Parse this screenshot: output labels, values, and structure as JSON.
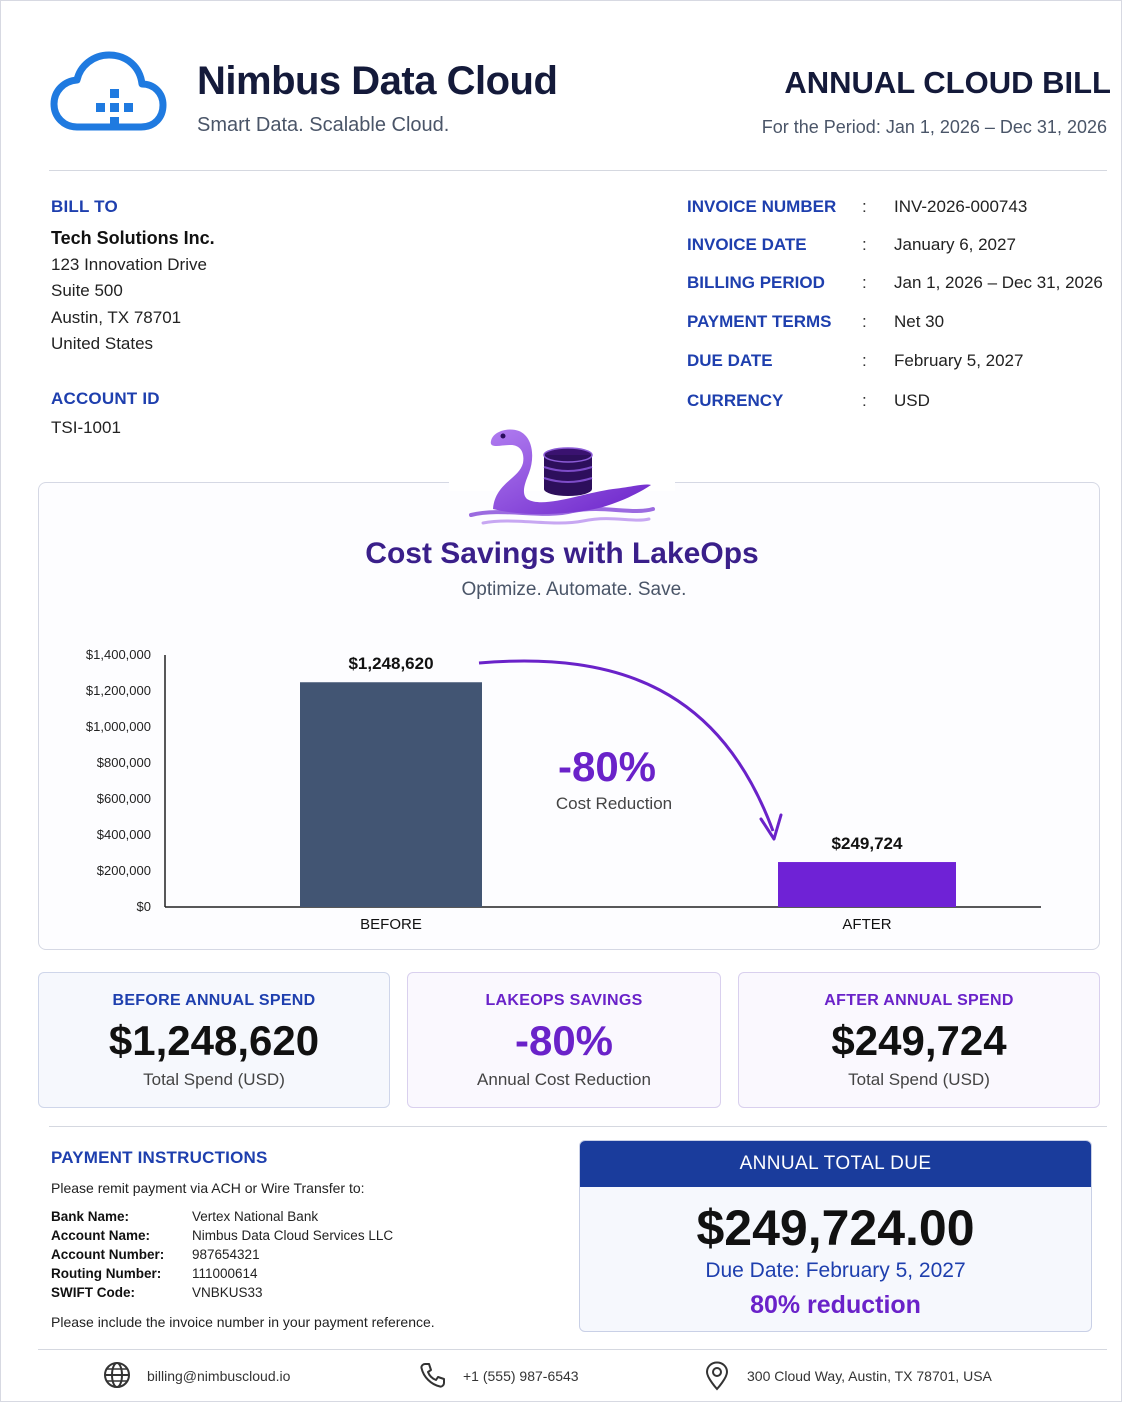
{
  "brand": {
    "name": "Nimbus Data Cloud",
    "tagline": "Smart Data. Scalable Cloud."
  },
  "document": {
    "title": "ANNUAL CLOUD BILL",
    "period": "For the Period: Jan 1, 2026 – Dec 31, 2026"
  },
  "bill_to": {
    "label": "BILL TO",
    "company": "Tech Solutions Inc.",
    "address": [
      "123 Innovation Drive",
      "Suite 500",
      "Austin, TX 78701",
      "United States"
    ],
    "account_label": "ACCOUNT ID",
    "account_id": "TSI-1001"
  },
  "invoice": [
    {
      "label": "INVOICE NUMBER",
      "value": "INV-2026-000743"
    },
    {
      "label": "INVOICE DATE",
      "value": "January 6, 2027"
    },
    {
      "label": "BILLING PERIOD",
      "value": "Jan 1, 2026 – Dec 31, 2026"
    },
    {
      "label": "PAYMENT TERMS",
      "value": "Net 30"
    },
    {
      "label": "DUE DATE",
      "value": "February 5, 2027"
    },
    {
      "label": "CURRENCY",
      "value": "USD"
    }
  ],
  "chart_card": {
    "title": "Cost Savings with LakeOps",
    "subtitle": "Optimize. Automate. Save."
  },
  "chart_data": {
    "type": "bar",
    "categories": [
      "BEFORE",
      "AFTER"
    ],
    "values": [
      1248620,
      249724
    ],
    "value_labels": [
      "$1,248,620",
      "$249,724"
    ],
    "y_ticks": [
      "$0",
      "$200,000",
      "$400,000",
      "$600,000",
      "$800,000",
      "$1,000,000",
      "$1,200,000",
      "$1,400,000"
    ],
    "ylim": [
      0,
      1400000
    ],
    "colors": [
      "#425573",
      "#6f22d6"
    ],
    "annotation": {
      "value": "-80%",
      "label": "Cost Reduction",
      "color": "#6a22c9"
    },
    "grid": false
  },
  "stats": {
    "before": {
      "label": "BEFORE ANNUAL SPEND",
      "value": "$1,248,620",
      "sub": "Total Spend (USD)"
    },
    "savings": {
      "label": "LAKEOPS SAVINGS",
      "value": "-80%",
      "sub": "Annual Cost Reduction"
    },
    "after": {
      "label": "AFTER ANNUAL SPEND",
      "value": "$249,724",
      "sub": "Total Spend (USD)"
    }
  },
  "payment": {
    "label": "PAYMENT INSTRUCTIONS",
    "intro": "Please remit payment via ACH or Wire Transfer to:",
    "rows": [
      {
        "key": "Bank Name:",
        "value": "Vertex National Bank"
      },
      {
        "key": "Account Name:",
        "value": "Nimbus Data Cloud Services LLC"
      },
      {
        "key": "Account Number:",
        "value": "987654321"
      },
      {
        "key": "Routing Number:",
        "value": "111000614"
      },
      {
        "key": "SWIFT Code:",
        "value": "VNBKUS33"
      }
    ],
    "note": "Please include the invoice number in your payment reference."
  },
  "total_due": {
    "header": "ANNUAL TOTAL DUE",
    "amount": "$249,724.00",
    "due_date": "Due Date: February 5, 2027",
    "reduction": "80% reduction"
  },
  "footer": {
    "email": "billing@nimbuscloud.io",
    "phone": "+1 (555) 987-6543",
    "address": "300 Cloud Way, Austin, TX 78701, USA",
    "icons": [
      "globe-icon",
      "phone-icon",
      "location-pin-icon"
    ]
  },
  "colors": {
    "brand_blue": "#1f7ae0",
    "navy": "#1a3c9c",
    "label_blue": "#1e3fae",
    "purple": "#6a22c9",
    "before_bar": "#425573"
  }
}
